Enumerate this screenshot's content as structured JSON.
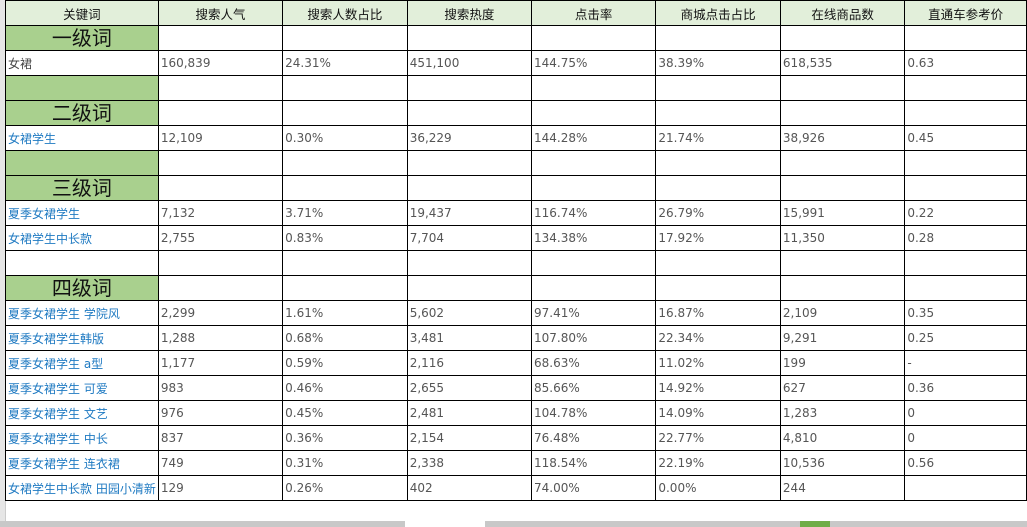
{
  "headers": [
    "关键词",
    "搜索人气",
    "搜索人数占比",
    "搜索热度",
    "点击率",
    "商城点击占比",
    "在线商品数",
    "直通车参考价"
  ],
  "rows": [
    {
      "type": "level",
      "label": "一级词"
    },
    {
      "type": "data",
      "cells": [
        "女裙",
        "160,839",
        "24.31%",
        "451,100",
        "144.75%",
        "38.39%",
        "618,535",
        "0.63"
      ],
      "first": true
    },
    {
      "type": "blank",
      "green": true
    },
    {
      "type": "level",
      "label": "二级词"
    },
    {
      "type": "data",
      "cells": [
        "女裙学生",
        "12,109",
        "0.30%",
        "36,229",
        "144.28%",
        "21.74%",
        "38,926",
        "0.45"
      ]
    },
    {
      "type": "blank",
      "green": true
    },
    {
      "type": "level",
      "label": "三级词"
    },
    {
      "type": "data",
      "cells": [
        "夏季女裙学生",
        "7,132",
        "3.71%",
        "19,437",
        "116.74%",
        "26.79%",
        "15,991",
        "0.22"
      ]
    },
    {
      "type": "data",
      "cells": [
        "女裙学生中长款",
        "2,755",
        "0.83%",
        "7,704",
        "134.38%",
        "17.92%",
        "11,350",
        "0.28"
      ]
    },
    {
      "type": "blank",
      "green": false
    },
    {
      "type": "level",
      "label": "四级词"
    },
    {
      "type": "data",
      "cells": [
        "夏季女裙学生 学院风",
        "2,299",
        "1.61%",
        "5,602",
        "97.41%",
        "16.87%",
        "2,109",
        "0.35"
      ]
    },
    {
      "type": "data",
      "cells": [
        "夏季女裙学生韩版",
        "1,288",
        "0.68%",
        "3,481",
        "107.80%",
        "22.34%",
        "9,291",
        "0.25"
      ]
    },
    {
      "type": "data",
      "cells": [
        "夏季女裙学生 a型",
        "1,177",
        "0.59%",
        "2,116",
        "68.63%",
        "11.02%",
        "199",
        "-"
      ]
    },
    {
      "type": "data",
      "cells": [
        "夏季女裙学生 可爱",
        "983",
        "0.46%",
        "2,655",
        "85.66%",
        "14.92%",
        "627",
        "0.36"
      ]
    },
    {
      "type": "data",
      "cells": [
        "夏季女裙学生 文艺",
        "976",
        "0.45%",
        "2,481",
        "104.78%",
        "14.09%",
        "1,283",
        "0"
      ]
    },
    {
      "type": "data",
      "cells": [
        "夏季女裙学生 中长",
        "837",
        "0.36%",
        "2,154",
        "76.48%",
        "22.77%",
        "4,810",
        "0"
      ]
    },
    {
      "type": "data",
      "cells": [
        "夏季女裙学生 连衣裙",
        "749",
        "0.31%",
        "2,338",
        "118.54%",
        "22.19%",
        "10,536",
        "0.56"
      ]
    },
    {
      "type": "data",
      "cells": [
        "女裙学生中长款 田园小清新",
        "129",
        "0.26%",
        "402",
        "74.00%",
        "0.00%",
        "244",
        ""
      ]
    }
  ]
}
